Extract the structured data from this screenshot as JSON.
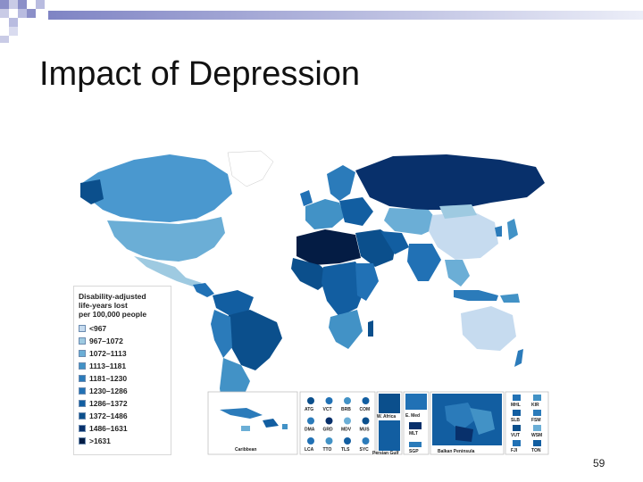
{
  "slide": {
    "title": "Impact of Depression",
    "page_number": "59"
  },
  "legend": {
    "title_lines": [
      "Disability-adjusted",
      "life-years lost",
      "per 100,000 people"
    ],
    "items": [
      {
        "label": "<967",
        "color": "#c6dbef"
      },
      {
        "label": "967–1072",
        "color": "#9ecae1"
      },
      {
        "label": "1072–1113",
        "color": "#6baed6"
      },
      {
        "label": "1113–1181",
        "color": "#4292c6"
      },
      {
        "label": "1181–1230",
        "color": "#2b7bba"
      },
      {
        "label": "1230–1286",
        "color": "#2171b5"
      },
      {
        "label": "1286–1372",
        "color": "#125ea1"
      },
      {
        "label": "1372–1486",
        "color": "#0b4f8c"
      },
      {
        "label": "1486–1631",
        "color": "#08306b"
      },
      {
        "label": ">1631",
        "color": "#041c44"
      }
    ]
  },
  "insets": {
    "caribbean": "Caribbean",
    "small_states": [
      "ATG",
      "VCT",
      "BRB",
      "COM",
      "DMA",
      "GRD",
      "MDV",
      "MUS",
      "LCA",
      "TTO",
      "TLS",
      "SYC"
    ],
    "regions": [
      "W. Africa",
      "E. Med",
      "MLT",
      "Persian Gulf",
      "SGP",
      "Balkan Peninsula"
    ],
    "pacific": [
      "MHL",
      "KIR",
      "SLB",
      "FSM",
      "VUT",
      "WSM",
      "FJI",
      "TON"
    ]
  }
}
